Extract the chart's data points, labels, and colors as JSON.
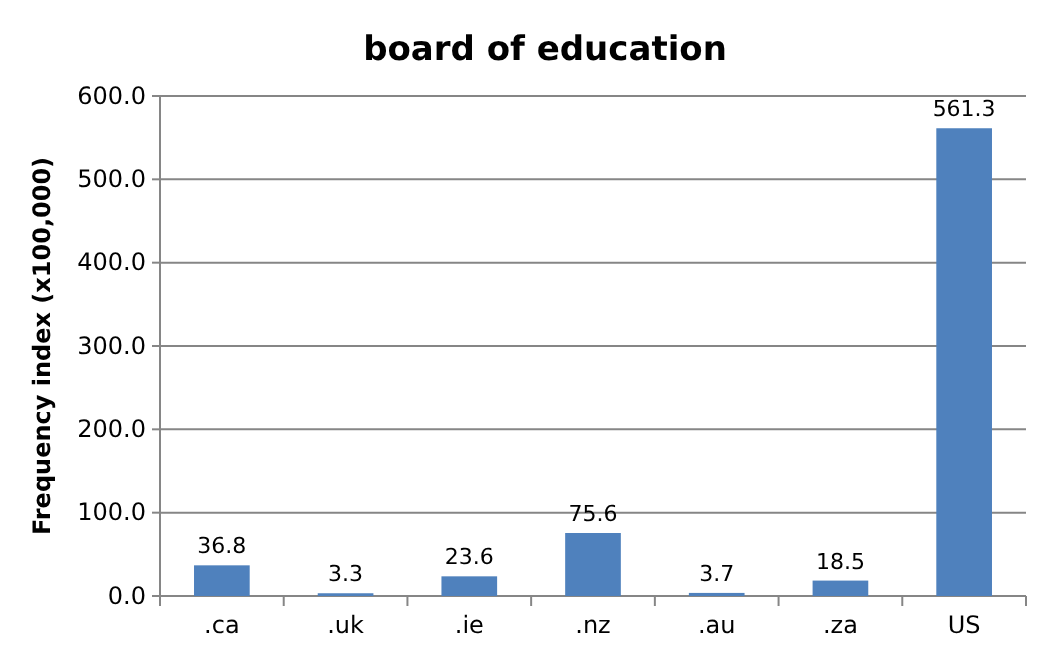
{
  "chart_data": {
    "type": "bar",
    "title": "board of education",
    "ylabel": "Frequency index (x100,000)",
    "categories": [
      ".ca",
      ".uk",
      ".ie",
      ".nz",
      ".au",
      ".za",
      "US"
    ],
    "values": [
      36.8,
      3.3,
      23.6,
      75.6,
      3.7,
      18.5,
      561.3
    ],
    "color": "#4f81bd",
    "ylim": [
      0,
      600
    ],
    "yticks": [
      {
        "value": 0,
        "label": "0.0"
      },
      {
        "value": 100,
        "label": "100.0"
      },
      {
        "value": 200,
        "label": "200.0"
      },
      {
        "value": 300,
        "label": "300.0"
      },
      {
        "value": 400,
        "label": "400.0"
      },
      {
        "value": 500,
        "label": "500.0"
      },
      {
        "value": 600,
        "label": "600.0"
      }
    ],
    "grid": "y",
    "data_labels": true
  }
}
